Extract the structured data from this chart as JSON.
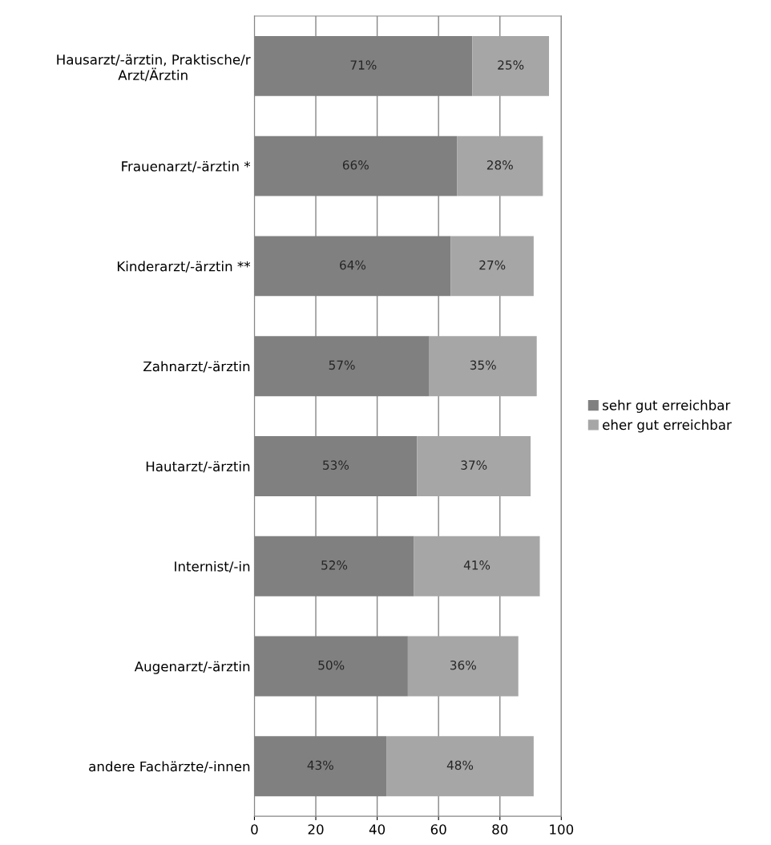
{
  "chart_data": {
    "type": "bar",
    "orientation": "horizontal",
    "stacked": true,
    "categories": [
      "Hausarzt/-ärztin, Praktische/r Arzt/Ärztin",
      "Frauenarzt/-ärztin *",
      "Kinderarzt/-ärztin **",
      "Zahnarzt/-ärztin",
      "Hautarzt/-ärztin",
      "Internist/-in",
      "Augenarzt/-ärztin",
      "andere Fachärzte/-innen"
    ],
    "series": [
      {
        "name": "sehr gut erreichbar",
        "color": "#808080",
        "values": [
          71,
          66,
          64,
          57,
          53,
          52,
          50,
          43
        ],
        "value_labels": [
          "71%",
          "66%",
          "64%",
          "57%",
          "53%",
          "52%",
          "50%",
          "43%"
        ]
      },
      {
        "name": "eher gut erreichbar",
        "color": "#a6a6a6",
        "values": [
          25,
          28,
          27,
          35,
          37,
          41,
          36,
          48
        ],
        "value_labels": [
          "25%",
          "28%",
          "27%",
          "35%",
          "37%",
          "41%",
          "36%",
          "48%"
        ]
      }
    ],
    "xlim": [
      0,
      100
    ],
    "xticks": [
      0,
      20,
      40,
      60,
      80,
      100
    ],
    "grid": "x",
    "legend": "right"
  }
}
